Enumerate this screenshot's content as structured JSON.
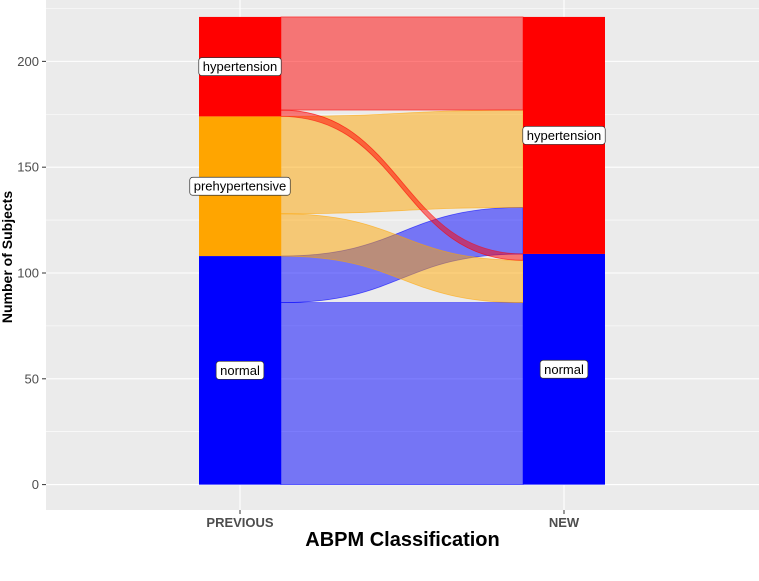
{
  "chart_data": {
    "type": "alluvial",
    "xlabel": "ABPM Classification",
    "ylabel": "Number of Subjects",
    "ylim": [
      -12,
      229
    ],
    "yticks": [
      0,
      50,
      100,
      150,
      200
    ],
    "axes": [
      "PREVIOUS",
      "NEW"
    ],
    "strata": {
      "PREVIOUS": [
        {
          "label": "normal",
          "value": 108,
          "color": "#0000FF"
        },
        {
          "label": "prehypertensive",
          "value": 66,
          "color": "#FFA500"
        },
        {
          "label": "hypertension",
          "value": 47,
          "color": "#FF0000"
        }
      ],
      "NEW": [
        {
          "label": "normal",
          "value": 109,
          "color": "#0000FF"
        },
        {
          "label": "hypertension",
          "value": 112,
          "color": "#FF0000"
        }
      ]
    },
    "flows": [
      {
        "from": "normal",
        "to": "normal",
        "value": 86,
        "color": "#0000FF"
      },
      {
        "from": "normal",
        "to": "hypertension",
        "value": 22,
        "color": "#0000FF"
      },
      {
        "from": "prehypertensive",
        "to": "normal",
        "value": 20,
        "color": "#FFA500"
      },
      {
        "from": "prehypertensive",
        "to": "hypertension",
        "value": 46,
        "color": "#FFA500"
      },
      {
        "from": "hypertension",
        "to": "normal",
        "value": 3,
        "color": "#FF0000"
      },
      {
        "from": "hypertension",
        "to": "hypertension",
        "value": 44,
        "color": "#FF0000"
      }
    ],
    "grid": true,
    "background": "#EBEBEB"
  }
}
